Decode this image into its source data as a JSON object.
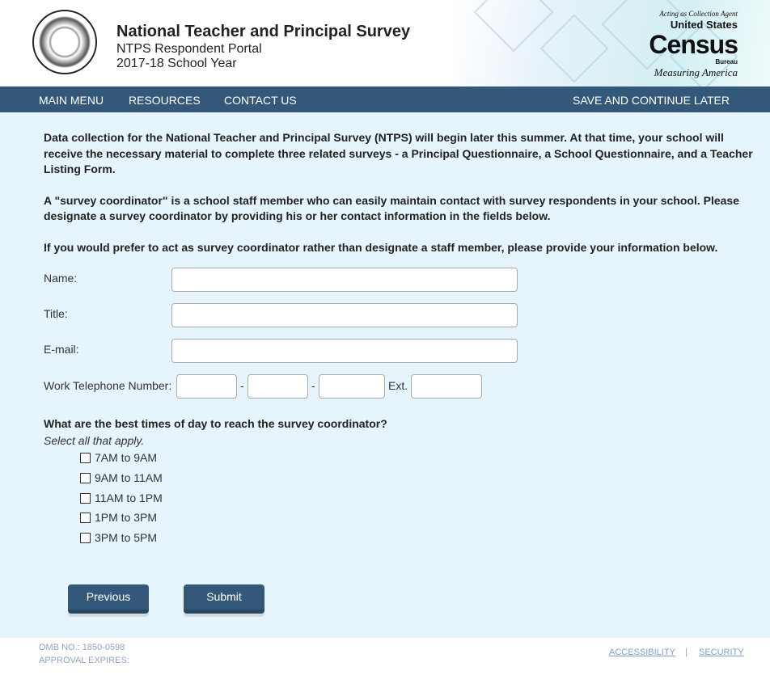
{
  "header": {
    "title": "National Teacher and Principal Survey",
    "subtitle": "NTPS Respondent Portal",
    "year": "2017-18 School Year",
    "seal_text": "DEPARTMENT OF EDUCATION - UNITED STATES OF AMERICA",
    "census": {
      "agent": "Acting as Collection Agent",
      "us": "United States",
      "census": "Census",
      "bureau": "Bureau",
      "tagline": "Measuring America"
    }
  },
  "nav": {
    "items": [
      "MAIN MENU",
      "RESOURCES",
      "CONTACT US"
    ],
    "save": "SAVE AND CONTINUE LATER"
  },
  "main": {
    "intro1": "Data collection for the National Teacher and Principal Survey (NTPS) will begin later this summer. At that time, your school will receive the necessary material to complete three related surveys - a Principal Questionnaire, a School Questionnaire, and a Teacher Listing Form.",
    "intro2": "A \"survey coordinator\" is a school staff member who can easily maintain contact with survey respondents in your school. Please designate a survey coordinator by providing his or her contact information in the fields below.",
    "intro3": "If you would prefer to act as survey coordinator rather than designate a staff member, please provide your information below.",
    "fields": {
      "name": "Name:",
      "title": "Title:",
      "email": "E-mail:",
      "phone": "Work Telephone Number:",
      "ext": "Ext.",
      "sep": "-"
    },
    "question": "What are the best times of day to reach the survey coordinator?",
    "instruction": "Select all that apply.",
    "options": [
      "7AM to 9AM",
      "9AM to 11AM",
      "11AM to 1PM",
      "1PM to 3PM",
      "3PM to 5PM"
    ],
    "previous": "Previous",
    "submit": "Submit"
  },
  "footer": {
    "omb": "OMB NO.: 1850-0598",
    "approval": "APPROVAL EXPIRES:",
    "accessibility": "ACCESSIBILITY",
    "sep": "|",
    "security": "SECURITY"
  },
  "colors": {
    "nav": "#34587a",
    "background": "#e6f4fc"
  }
}
